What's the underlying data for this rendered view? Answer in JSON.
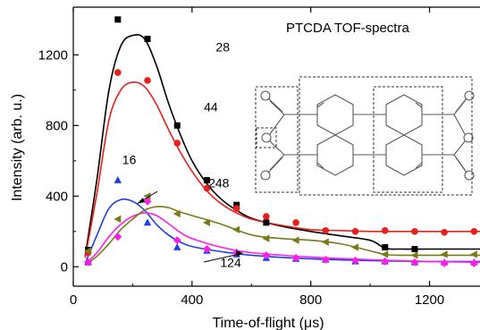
{
  "chart_data": {
    "type": "scatter",
    "title": "PTCDA TOF-spectra",
    "xlabel": "Time-of-flight (μs)",
    "ylabel": "Intensity (arb. u.)",
    "xlim": [
      0,
      1370
    ],
    "ylim": [
      -110,
      1470
    ],
    "xticks": [
      "0",
      "400",
      "800",
      "1200"
    ],
    "xtick_values": [
      0,
      400,
      800,
      1200
    ],
    "yticks": [
      "0",
      "400",
      "800",
      "1200"
    ],
    "ytick_values": [
      0,
      400,
      800,
      1200
    ],
    "grid": false,
    "series": [
      {
        "name": "28",
        "color": "#000000",
        "marker": "square",
        "x": [
          50,
          150,
          250,
          350,
          450,
          550,
          650,
          1050,
          1150
        ],
        "y": [
          95,
          1400,
          1290,
          800,
          490,
          350,
          250,
          110,
          100
        ],
        "fit_x": [
          40,
          80,
          120,
          160,
          200,
          240,
          280,
          320,
          360,
          400,
          450,
          500,
          550,
          600,
          700,
          800,
          900,
          1000,
          1050,
          1100,
          1200,
          1300,
          1370
        ],
        "fit_y": [
          60,
          500,
          1000,
          1250,
          1310,
          1290,
          1140,
          930,
          750,
          600,
          470,
          380,
          320,
          275,
          230,
          200,
          175,
          150,
          105,
          100,
          100,
          100,
          100
        ]
      },
      {
        "name": "44",
        "color": "#e8201c",
        "marker": "circle",
        "x": [
          50,
          150,
          250,
          350,
          450,
          550,
          650,
          750,
          850,
          950,
          1050,
          1150,
          1250,
          1350
        ],
        "y": [
          80,
          1100,
          1055,
          700,
          445,
          330,
          285,
          250,
          205,
          200,
          205,
          200,
          195,
          200
        ],
        "fit_x": [
          40,
          80,
          120,
          160,
          200,
          240,
          280,
          320,
          360,
          400,
          450,
          500,
          550,
          600,
          700,
          800,
          900,
          1000,
          1100,
          1200,
          1300,
          1370
        ],
        "fit_y": [
          50,
          420,
          830,
          1000,
          1045,
          1020,
          920,
          780,
          650,
          540,
          430,
          355,
          305,
          270,
          235,
          210,
          205,
          200,
          200,
          200,
          200,
          200
        ]
      },
      {
        "name": "16",
        "color": "#1f3ee8",
        "marker": "triangle-up",
        "x": [
          50,
          150,
          250,
          350,
          450,
          550,
          650,
          750,
          850,
          950,
          1050,
          1150,
          1250,
          1350
        ],
        "y": [
          25,
          490,
          250,
          110,
          90,
          70,
          50,
          45,
          40,
          30,
          30,
          25,
          25,
          25
        ],
        "fit_x": [
          40,
          80,
          120,
          160,
          200,
          240,
          280,
          320,
          360,
          400,
          500,
          600,
          800,
          1000,
          1200,
          1370
        ],
        "fit_y": [
          20,
          180,
          330,
          380,
          370,
          320,
          240,
          180,
          140,
          115,
          85,
          65,
          45,
          35,
          30,
          30
        ]
      },
      {
        "name": "124",
        "color": "#ff1ee6",
        "marker": "diamond",
        "x": [
          50,
          150,
          250,
          350,
          450,
          550,
          650,
          750,
          850,
          950,
          1050,
          1150,
          1250,
          1350
        ],
        "y": [
          25,
          170,
          370,
          150,
          100,
          80,
          65,
          50,
          40,
          35,
          30,
          25,
          20,
          20
        ],
        "fit_x": [
          40,
          80,
          120,
          160,
          200,
          240,
          280,
          320,
          360,
          400,
          500,
          600,
          800,
          1000,
          1200,
          1370
        ],
        "fit_y": [
          15,
          80,
          170,
          240,
          285,
          305,
          290,
          245,
          195,
          160,
          110,
          80,
          55,
          40,
          30,
          25
        ]
      },
      {
        "name": "248",
        "color": "#7a7a18",
        "marker": "triangle-left",
        "x": [
          50,
          150,
          250,
          350,
          450,
          550,
          650,
          750,
          850,
          950,
          1050,
          1150,
          1250,
          1350
        ],
        "y": [
          90,
          270,
          400,
          300,
          250,
          210,
          160,
          150,
          140,
          110,
          70,
          65,
          70,
          70
        ],
        "fit_x": [
          40,
          80,
          120,
          160,
          200,
          240,
          280,
          320,
          360,
          400,
          500,
          600,
          700,
          800,
          900,
          1000,
          1050,
          1100,
          1200,
          1300,
          1370
        ],
        "fit_y": [
          10,
          60,
          130,
          210,
          270,
          320,
          340,
          335,
          310,
          290,
          240,
          180,
          160,
          150,
          130,
          90,
          70,
          65,
          65,
          65,
          65
        ]
      }
    ],
    "annotations": [
      {
        "text": "28",
        "x": 480,
        "y": 1220
      },
      {
        "text": "44",
        "x": 440,
        "y": 880
      },
      {
        "text": "16",
        "x": 165,
        "y": 580
      },
      {
        "text": "248",
        "x": 455,
        "y": 450
      },
      {
        "text": "124",
        "x": 495,
        "y": 0
      }
    ]
  }
}
